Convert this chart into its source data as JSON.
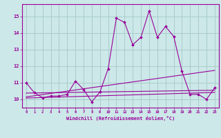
{
  "xlabel": "Windchill (Refroidissement éolien,°C)",
  "background_color": "#cce8e8",
  "grid_color": "#aacccc",
  "line_color": "#990099",
  "xlim": [
    -0.5,
    23.5
  ],
  "ylim": [
    9.5,
    15.75
  ],
  "yticks": [
    10,
    11,
    12,
    13,
    14,
    15
  ],
  "xticks": [
    0,
    1,
    2,
    3,
    4,
    5,
    6,
    7,
    8,
    9,
    10,
    11,
    12,
    13,
    14,
    15,
    16,
    17,
    18,
    19,
    20,
    21,
    22,
    23
  ],
  "series_main_x": [
    0,
    1,
    2,
    3,
    4,
    5,
    6,
    7,
    8,
    9,
    10,
    11,
    12,
    13,
    14,
    15,
    16,
    17,
    18,
    19,
    20,
    21,
    22,
    23
  ],
  "series_main_y": [
    11.0,
    10.4,
    10.1,
    10.2,
    10.2,
    10.3,
    11.1,
    10.6,
    9.85,
    10.45,
    11.85,
    14.9,
    14.65,
    13.3,
    13.75,
    15.35,
    13.75,
    14.4,
    13.8,
    11.7,
    10.3,
    10.3,
    10.0,
    10.7
  ],
  "smooth_lines": [
    {
      "x": [
        0,
        23
      ],
      "y": [
        10.38,
        10.55
      ]
    },
    {
      "x": [
        0,
        23
      ],
      "y": [
        10.15,
        11.75
      ]
    },
    {
      "x": [
        0,
        23
      ],
      "y": [
        10.08,
        10.42
      ]
    }
  ]
}
